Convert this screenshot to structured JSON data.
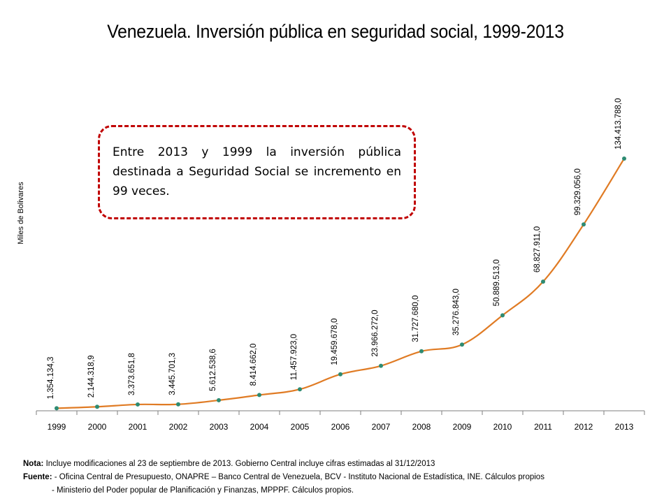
{
  "title": "Venezuela. Inversión pública en seguridad social, 1999-2013",
  "callout": {
    "text": "Entre 2013 y 1999 la inversión pública destinada a Seguridad Social se incremento en 99 veces."
  },
  "notes": {
    "nota_label": "Nota:",
    "nota_text": "Incluye modificaciones al 23 de septiembre de 2013. Gobierno Central incluye cifras estimadas al 31/12/2013",
    "fuente_label": "Fuente:",
    "fuente_line1": "- Oficina Central de Presupuesto, ONAPRE – Banco Central de Venezuela, BCV  - Instituto Nacional de Estadística, INE. Cálculos propios",
    "fuente_line2": "- Ministerio del Poder popular de Planificación y Finanzas, MPPPF. Cálculos propios."
  },
  "colors": {
    "line": "#e07b24",
    "marker": "#2e8b72",
    "callout_border": "#c00000"
  },
  "chart_data": {
    "type": "line",
    "title": "Venezuela. Inversión pública en seguridad social, 1999-2013",
    "xlabel": "",
    "ylabel": "Miles de Bolivares",
    "ylim": [
      0,
      140000000
    ],
    "grid": false,
    "categories": [
      "1999",
      "2000",
      "2001",
      "2002",
      "2003",
      "2004",
      "2005",
      "2006",
      "2007",
      "2008",
      "2009",
      "2010",
      "2011",
      "2012",
      "2013"
    ],
    "values": [
      1354134.3,
      2144318.9,
      3373651.8,
      3445701.3,
      5612538.6,
      8414662.0,
      11457923.0,
      19459678.0,
      23966272.0,
      31727680.0,
      35276843.0,
      50889513.0,
      68827911.0,
      99329056.0,
      134413788.0
    ],
    "data_labels": [
      "1.354.134,3",
      "2.144.318,9",
      "3.373.651,8",
      "3.445.701,3",
      "5.612.538,6",
      "8.414.662,0",
      "11.457.923,0",
      "19.459.678,0",
      "23.966.272,0",
      "31.727.680,0",
      "35.276.843,0",
      "50.889.513,0",
      "68.827.911,0",
      "99.329.056,0",
      "134.413.788,0"
    ]
  }
}
